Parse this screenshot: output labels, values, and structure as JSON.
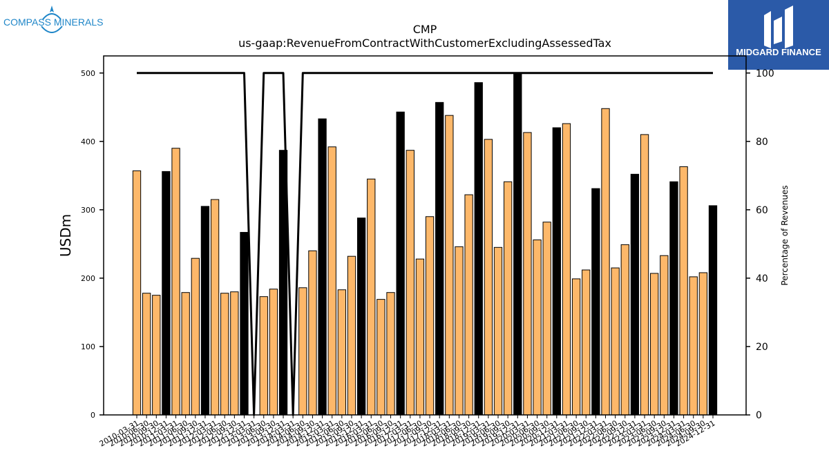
{
  "brand_left": {
    "name": "COMPASS MINERALS",
    "color": "#1f86c8"
  },
  "brand_right": {
    "name": "MIDGARD FINANCE",
    "bg": "#2b5aa8"
  },
  "chart_data": {
    "type": "bar",
    "title": "CMP",
    "subtitle": "us-gaap:RevenueFromContractWithCustomerExcludingAssessedTax",
    "ylabel": "USDm",
    "ylabel_right": "Percentage of Revenues",
    "ylim": [
      0,
      525
    ],
    "ylim_right": [
      0,
      105
    ],
    "yticks": [
      0,
      100,
      200,
      300,
      400,
      500
    ],
    "yticks_right": [
      0,
      20,
      40,
      60,
      80,
      100
    ],
    "colors": {
      "quarter": "#fdb86a",
      "annual": "#000000",
      "line": "#000000"
    },
    "categories": [
      "2010-03-31",
      "2010-06-30",
      "2010-09-30",
      "2010-12-31",
      "2011-03-31",
      "2011-06-30",
      "2011-09-30",
      "2011-12-31",
      "2012-03-31",
      "2012-06-30",
      "2012-09-30",
      "2012-12-31",
      "2013-03-31",
      "2013-06-30",
      "2013-09-30",
      "2013-12-31",
      "2014-03-31",
      "2014-06-30",
      "2014-09-30",
      "2014-12-31",
      "2015-03-31",
      "2015-06-30",
      "2015-09-30",
      "2015-12-31",
      "2016-03-31",
      "2016-06-30",
      "2016-09-30",
      "2016-12-31",
      "2017-03-31",
      "2017-06-30",
      "2017-09-30",
      "2017-12-31",
      "2018-03-31",
      "2018-06-30",
      "2018-09-30",
      "2018-12-31",
      "2019-03-31",
      "2019-06-30",
      "2019-09-30",
      "2019-12-31",
      "2020-03-31",
      "2020-06-30",
      "2020-09-30",
      "2020-12-31",
      "2021-03-31",
      "2021-06-30",
      "2021-09-30",
      "2021-12-31",
      "2022-03-31",
      "2022-06-30",
      "2022-09-30",
      "2022-12-31",
      "2023-03-31",
      "2023-06-30",
      "2023-09-30",
      "2023-12-31",
      "2024-03-31",
      "2024-06-30",
      "2024-09-30",
      "2024-12-31"
    ],
    "values": [
      357,
      178,
      175,
      356,
      390,
      179,
      229,
      305,
      315,
      178,
      180,
      267,
      null,
      173,
      184,
      387,
      null,
      186,
      240,
      433,
      392,
      183,
      232,
      288,
      345,
      169,
      179,
      443,
      387,
      228,
      290,
      457,
      438,
      246,
      322,
      486,
      403,
      245,
      341,
      500,
      413,
      256,
      282,
      420,
      426,
      199,
      212,
      331,
      448,
      215,
      249,
      352,
      410,
      207,
      233,
      341,
      363,
      202,
      208,
      306
    ],
    "kind": [
      "q",
      "q",
      "q",
      "a",
      "q",
      "q",
      "q",
      "a",
      "q",
      "q",
      "q",
      "a",
      "q",
      "q",
      "q",
      "a",
      "q",
      "q",
      "q",
      "a",
      "q",
      "q",
      "q",
      "a",
      "q",
      "q",
      "q",
      "a",
      "q",
      "q",
      "q",
      "a",
      "q",
      "q",
      "q",
      "a",
      "q",
      "q",
      "q",
      "a",
      "q",
      "q",
      "q",
      "a",
      "q",
      "q",
      "q",
      "a",
      "q",
      "q",
      "q",
      "a",
      "q",
      "q",
      "q",
      "a",
      "q",
      "q",
      "q",
      "a"
    ],
    "series": [
      {
        "values": [
          100,
          100,
          100,
          100,
          100,
          100,
          100,
          100,
          100,
          100,
          100,
          100,
          0,
          100,
          100,
          100,
          0,
          100,
          100,
          100,
          100,
          100,
          100,
          100,
          100,
          100,
          100,
          100,
          100,
          100,
          100,
          100,
          100,
          100,
          100,
          100,
          100,
          100,
          100,
          100,
          100,
          100,
          100,
          100,
          100,
          100,
          100,
          100,
          100,
          100,
          100,
          100,
          100,
          100,
          100,
          100,
          100,
          100,
          100,
          100
        ]
      }
    ]
  }
}
